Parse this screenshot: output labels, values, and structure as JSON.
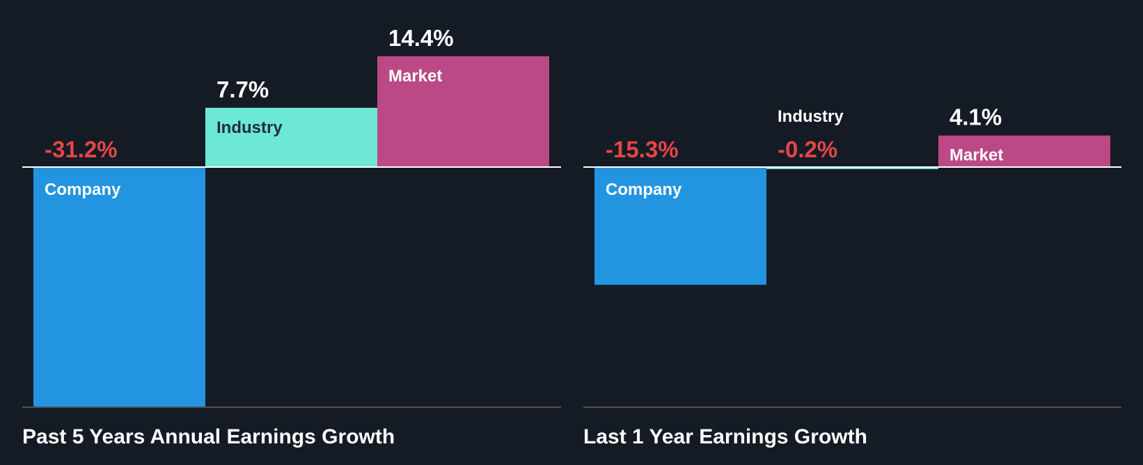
{
  "colors": {
    "background": "#151b24",
    "company": "#2394e0",
    "industry": "#6ee8d6",
    "market": "#bb4986",
    "negative_text": "#e64545",
    "positive_text": "#ffffff",
    "baseline": "#ffffff",
    "bottom_axis": "#4b4f56",
    "title_text": "#ffffff",
    "label_on_company": "#ffffff",
    "label_on_industry": "#1f2d3a",
    "label_on_market": "#ffffff"
  },
  "chart_data": [
    {
      "type": "bar",
      "title": "Past 5 Years Annual Earnings Growth",
      "categories": [
        "Company",
        "Industry",
        "Market"
      ],
      "values": [
        -31.2,
        7.7,
        14.4
      ],
      "value_labels": [
        "-31.2%",
        "7.7%",
        "14.4%"
      ],
      "unit": "%",
      "ylim": [
        -31.2,
        14.4
      ],
      "grid": false,
      "legend": "none"
    },
    {
      "type": "bar",
      "title": "Last 1 Year Earnings Growth",
      "categories": [
        "Company",
        "Industry",
        "Market"
      ],
      "values": [
        -15.3,
        -0.2,
        4.1
      ],
      "value_labels": [
        "-15.3%",
        "-0.2%",
        "4.1%"
      ],
      "unit": "%",
      "ylim": [
        -31.2,
        14.4
      ],
      "grid": false,
      "legend": "none"
    }
  ]
}
